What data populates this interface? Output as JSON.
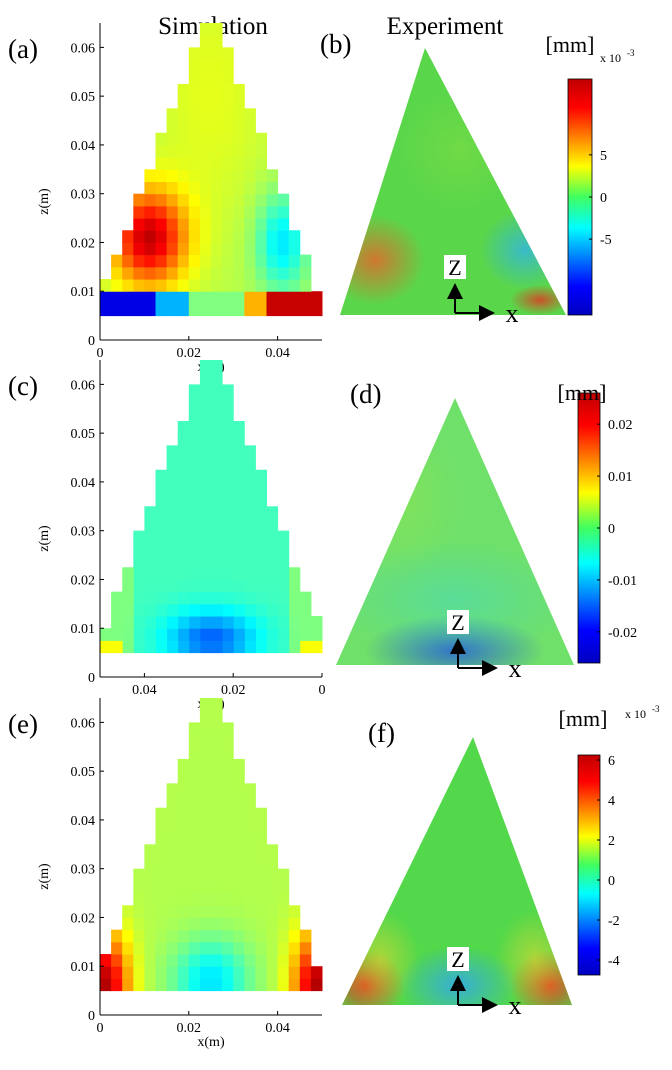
{
  "column_titles": [
    "Simulation",
    "Experiment"
  ],
  "rows": [
    {
      "simulation": {
        "label": "(a)",
        "xlabel": "x(m)",
        "ylabel": "z(m)",
        "xlim": [
          0,
          0.05
        ],
        "xticks": [
          0,
          0.02,
          0.04
        ],
        "ylim": [
          0,
          0.065
        ],
        "yticks": [
          0,
          0.01,
          0.02,
          0.03,
          0.04,
          0.05,
          0.06
        ]
      },
      "experiment": {
        "label": "(b)",
        "z_label": "Z",
        "x_label": "x"
      },
      "colorbar": {
        "unit": "[mm]",
        "multiplier": "x 10",
        "exponent": "-3",
        "lim": [
          -14,
          14
        ],
        "ticks": [
          5,
          0,
          -5
        ]
      }
    },
    {
      "simulation": {
        "label": "(c)",
        "xlabel": "x(m)",
        "ylabel": "z(m)",
        "xlim": [
          0.05,
          0
        ],
        "xticks": [
          0.04,
          0.02,
          0
        ],
        "ylim": [
          0,
          0.065
        ],
        "yticks": [
          0,
          0.01,
          0.02,
          0.03,
          0.04,
          0.05,
          0.06
        ]
      },
      "experiment": {
        "label": "(d)",
        "z_label": "Z",
        "x_label": "x"
      },
      "colorbar": {
        "unit": "[mm]",
        "lim": [
          -0.026,
          0.026
        ],
        "ticks": [
          0.02,
          0.01,
          0,
          -0.01,
          -0.02
        ]
      }
    },
    {
      "simulation": {
        "label": "(e)",
        "xlabel": "x(m)",
        "ylabel": "z(m)",
        "xlim": [
          0,
          0.05
        ],
        "xticks": [
          0,
          0.02,
          0.04
        ],
        "ylim": [
          0,
          0.065
        ],
        "yticks": [
          0,
          0.01,
          0.02,
          0.03,
          0.04,
          0.05,
          0.06
        ]
      },
      "experiment": {
        "label": "(f)",
        "z_label": "Z",
        "x_label": "x"
      },
      "colorbar": {
        "unit": "[mm]",
        "multiplier": "x 10",
        "exponent": "-3",
        "lim": [
          -4.75,
          6.25
        ],
        "ticks": [
          6,
          4,
          2,
          0,
          -2,
          -4
        ]
      }
    }
  ]
}
